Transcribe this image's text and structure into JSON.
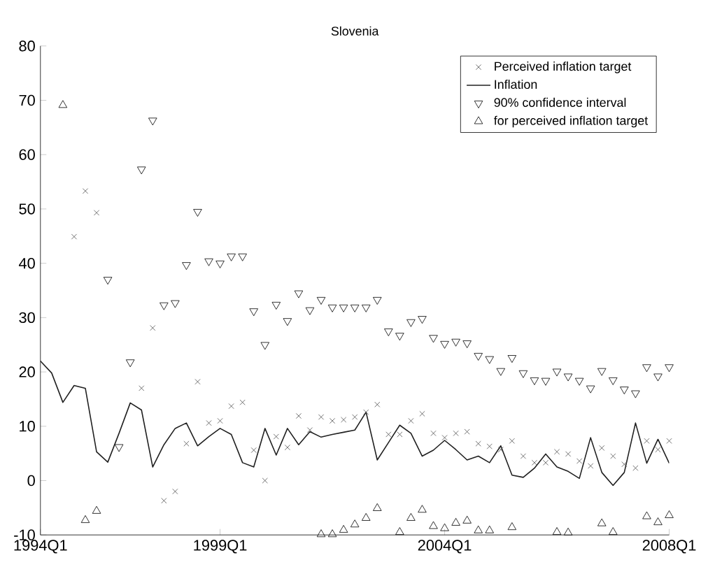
{
  "chart_data": {
    "type": "scatter",
    "title": "Slovenia",
    "categories": [
      "1994Q1",
      null,
      null,
      null,
      null,
      null,
      null,
      null,
      null,
      null,
      null,
      null,
      null,
      null,
      null,
      null,
      "1999Q1",
      null,
      null,
      null,
      null,
      null,
      null,
      null,
      null,
      null,
      null,
      null,
      null,
      null,
      null,
      null,
      null,
      null,
      null,
      null,
      "2004Q1",
      null,
      null,
      null,
      null,
      null,
      null,
      null,
      null,
      null,
      null,
      null,
      null,
      null,
      null,
      null,
      null,
      null,
      null,
      null,
      "2008Q1"
    ],
    "ylim": [
      -10,
      80
    ],
    "yticks": [
      -10,
      0,
      10,
      20,
      30,
      40,
      50,
      60,
      70,
      80
    ],
    "legend": "top right",
    "series": [
      {
        "name": "Perceived inflation target",
        "marker": "cross",
        "color": "#505050",
        "values": [
          null,
          null,
          null,
          44.9,
          53.3,
          49.3,
          null,
          null,
          null,
          17.0,
          28.1,
          -3.7,
          -2.0,
          6.8,
          18.2,
          10.6,
          11.0,
          13.7,
          14.4,
          5.6,
          0,
          8.1,
          6.1,
          11.9,
          9.3,
          11.7,
          11.0,
          11.2,
          11.7,
          12.6,
          14.0,
          8.5,
          8.5,
          11.0,
          12.3,
          8.7,
          7.9,
          8.7,
          9.0,
          6.8,
          6.3,
          5.7,
          7.3,
          4.5,
          3.3,
          3.3,
          5.3,
          4.9,
          3.6,
          2.7,
          6.0,
          4.5,
          3.0,
          2.3,
          7.3,
          5.7,
          7.3
        ]
      },
      {
        "name": "Inflation",
        "type": "line",
        "marker": "none",
        "color": "#202020",
        "values": [
          22.0,
          19.8,
          14.4,
          17.5,
          17.0,
          5.3,
          3.4,
          8.7,
          14.3,
          13.0,
          2.5,
          6.6,
          9.6,
          10.6,
          6.4,
          8.1,
          9.6,
          8.5,
          3.3,
          2.5,
          9.6,
          4.7,
          9.6,
          6.6,
          9.0,
          8.0,
          8.5,
          8.9,
          9.3,
          12.6,
          3.8,
          7.0,
          10.2,
          8.7,
          4.5,
          5.6,
          7.4,
          5.7,
          3.8,
          4.5,
          3.3,
          6.4,
          1.0,
          0.6,
          2.3,
          4.9,
          2.5,
          1.7,
          0.4,
          7.9,
          1.5,
          -0.9,
          1.5,
          10.6,
          3.2,
          7.6,
          3.2
        ]
      },
      {
        "name": "90% confidence interval",
        "marker": "triangle-down",
        "color": "#000000",
        "values": [
          null,
          null,
          null,
          null,
          null,
          null,
          37.0,
          6.2,
          21.8,
          57.3,
          66.3,
          32.3,
          32.7,
          39.7,
          49.5,
          40.4,
          40.0,
          41.3,
          41.3,
          31.2,
          25.0,
          32.4,
          29.4,
          34.5,
          31.4,
          33.3,
          31.9,
          31.9,
          31.9,
          31.9,
          33.3,
          27.5,
          26.7,
          29.2,
          29.8,
          26.3,
          25.2,
          25.6,
          25.3,
          23.0,
          22.4,
          20.2,
          22.6,
          19.8,
          18.5,
          18.4,
          20.1,
          19.2,
          18.4,
          17.0,
          20.2,
          18.5,
          16.8,
          16.1,
          20.9,
          19.2,
          20.9
        ]
      },
      {
        "name": "for perceived inflation target",
        "marker": "triangle",
        "color": "#000000",
        "values": [
          null,
          null,
          69.1,
          null,
          -7.3,
          -5.6,
          null,
          null,
          null,
          null,
          null,
          null,
          null,
          null,
          null,
          null,
          null,
          null,
          null,
          null,
          null,
          null,
          null,
          null,
          null,
          -9.9,
          -9.9,
          -9.1,
          -8.1,
          -6.9,
          -5.1,
          null,
          -9.5,
          -6.9,
          -5.4,
          -8.4,
          -8.8,
          -7.8,
          -7.4,
          -9.2,
          -9.2,
          null,
          -8.6,
          null,
          null,
          null,
          -9.5,
          -9.6,
          null,
          null,
          -7.9,
          -9.5,
          null,
          null,
          -6.6,
          -7.7,
          -6.4
        ]
      }
    ]
  }
}
